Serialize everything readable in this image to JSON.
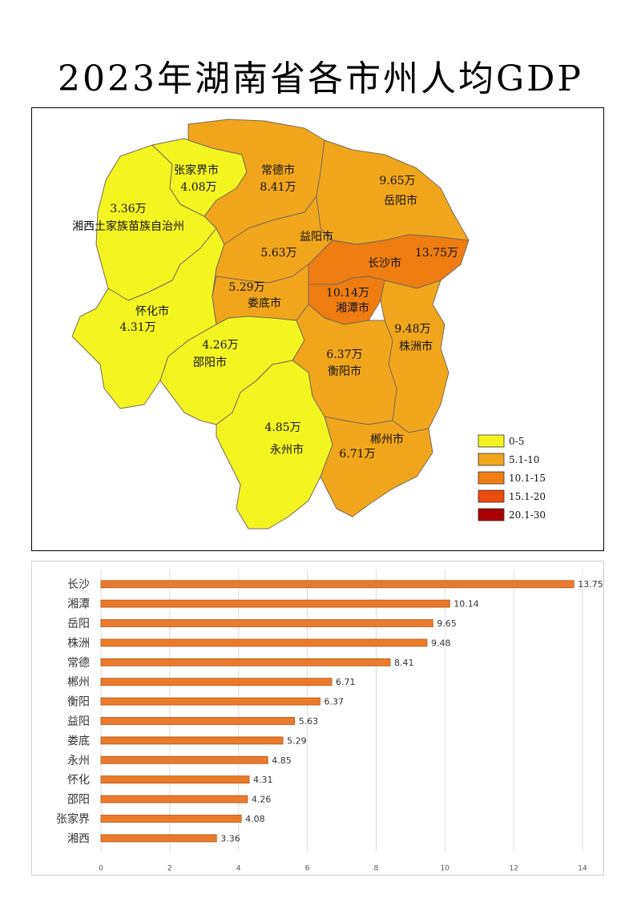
{
  "title": "2023年湖南省各市州人均GDP",
  "colors": {
    "yellow": "#f3f521",
    "light_orange": "#f0a61c",
    "orange": "#ef7d12",
    "red_orange": "#ee4a10",
    "dark_red": "#a80000",
    "bar_fill": "#ec7a2c",
    "bar_edge": "#b4561a"
  },
  "map": {
    "regions": [
      {
        "name": "张家界市",
        "value": "4.08万",
        "class": "0-5"
      },
      {
        "name": "湘西土家族苗族自治州",
        "value": "3.36万",
        "class": "0-5"
      },
      {
        "name": "常德市",
        "value": "8.41万",
        "class": "5.1-10"
      },
      {
        "name": "岳阳市",
        "value": "9.65万",
        "class": "5.1-10"
      },
      {
        "name": "益阳市",
        "value": "5.63万",
        "class": "5.1-10"
      },
      {
        "name": "长沙市",
        "value": "13.75万",
        "class": "10.1-15"
      },
      {
        "name": "娄底市",
        "value": "5.29万",
        "class": "5.1-10"
      },
      {
        "name": "湘潭市",
        "value": "10.14万",
        "class": "10.1-15"
      },
      {
        "name": "怀化市",
        "value": "4.31万",
        "class": "0-5"
      },
      {
        "name": "株洲市",
        "value": "9.48万",
        "class": "5.1-10"
      },
      {
        "name": "邵阳市",
        "value": "4.26万",
        "class": "0-5"
      },
      {
        "name": "衡阳市",
        "value": "6.37万",
        "class": "5.1-10"
      },
      {
        "name": "永州市",
        "value": "4.85万",
        "class": "0-5"
      },
      {
        "name": "郴州市",
        "value": "6.71万",
        "class": "5.1-10"
      }
    ],
    "legend": [
      {
        "label": "0-5",
        "color": "#f3f521"
      },
      {
        "label": "5.1-10",
        "color": "#f0a61c"
      },
      {
        "label": "10.1-15",
        "color": "#ef7d12"
      },
      {
        "label": "15.1-20",
        "color": "#ee4a10"
      },
      {
        "label": "20.1-30",
        "color": "#a80000"
      }
    ]
  },
  "chart_data": {
    "type": "bar",
    "orientation": "horizontal",
    "categories": [
      "长沙",
      "湘潭",
      "岳阳",
      "株洲",
      "常德",
      "郴州",
      "衡阳",
      "益阳",
      "娄底",
      "永州",
      "怀化",
      "邵阳",
      "张家界",
      "湘西"
    ],
    "values": [
      13.75,
      10.14,
      9.65,
      9.48,
      8.41,
      6.71,
      6.37,
      5.63,
      5.29,
      4.85,
      4.31,
      4.26,
      4.08,
      3.36
    ],
    "value_labels": [
      "13.75",
      "10.14",
      "9.65",
      "9.48",
      "8.41",
      "6.71",
      "6.37",
      "5.63",
      "5.29",
      "4.85",
      "4.31",
      "4.26",
      "4.08",
      "3.36"
    ],
    "xlim": [
      0,
      14
    ],
    "xticks": [
      "0",
      "2",
      "4",
      "6",
      "8",
      "10",
      "12",
      "14"
    ],
    "grid": true,
    "title": "",
    "xlabel": "",
    "ylabel": ""
  }
}
